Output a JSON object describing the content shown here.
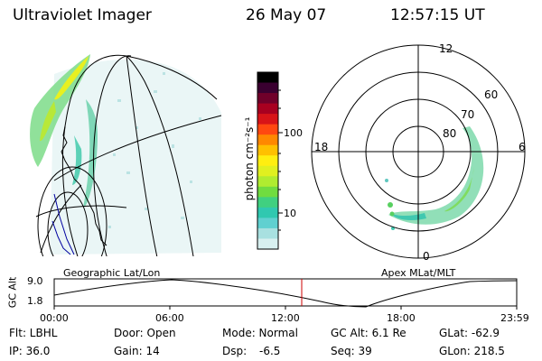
{
  "header": {
    "instrument": "Ultraviolet Imager",
    "date": "26 May 07",
    "time": "12:57:15 UT"
  },
  "colorbar": {
    "label": "photon cm⁻²s⁻¹",
    "ticks": [
      "100",
      "10"
    ],
    "colors": [
      "#000000",
      "#3a0030",
      "#70002a",
      "#a80020",
      "#d81418",
      "#ff4810",
      "#ff8800",
      "#ffc000",
      "#ffee10",
      "#e0f020",
      "#b0ec30",
      "#70dc40",
      "#40d080",
      "#30c8b0",
      "#60d0d0",
      "#a8e0e0",
      "#d8f0f0"
    ]
  },
  "polar_plot": {
    "mlt_labels": [
      "12",
      "18",
      "6",
      "0"
    ],
    "mlat_labels": [
      "60",
      "70",
      "80"
    ]
  },
  "map_labels": {
    "left": "Geographic Lat/Lon",
    "right": "Apex MLat/MLT"
  },
  "altitude_plot": {
    "ylabel": "GC Alt",
    "yticks": [
      "9.0",
      "1.8"
    ],
    "xticks": [
      "00:00",
      "06:00",
      "12:00",
      "18:00",
      "23:59"
    ],
    "marker_time": "12:57:15"
  },
  "status": {
    "flt": "Flt: LBHL",
    "door": "Door: Open",
    "mode": "Mode: Normal",
    "gc_alt": "GC Alt: 6.1 Re",
    "glat": "GLat: -62.9",
    "ip": "IP: 36.0",
    "gain": "Gain: 14",
    "dsp_label": "Dsp:",
    "dsp_value": "-6.5",
    "seq": "Seq: 39",
    "glon": "GLon: 218.5"
  }
}
